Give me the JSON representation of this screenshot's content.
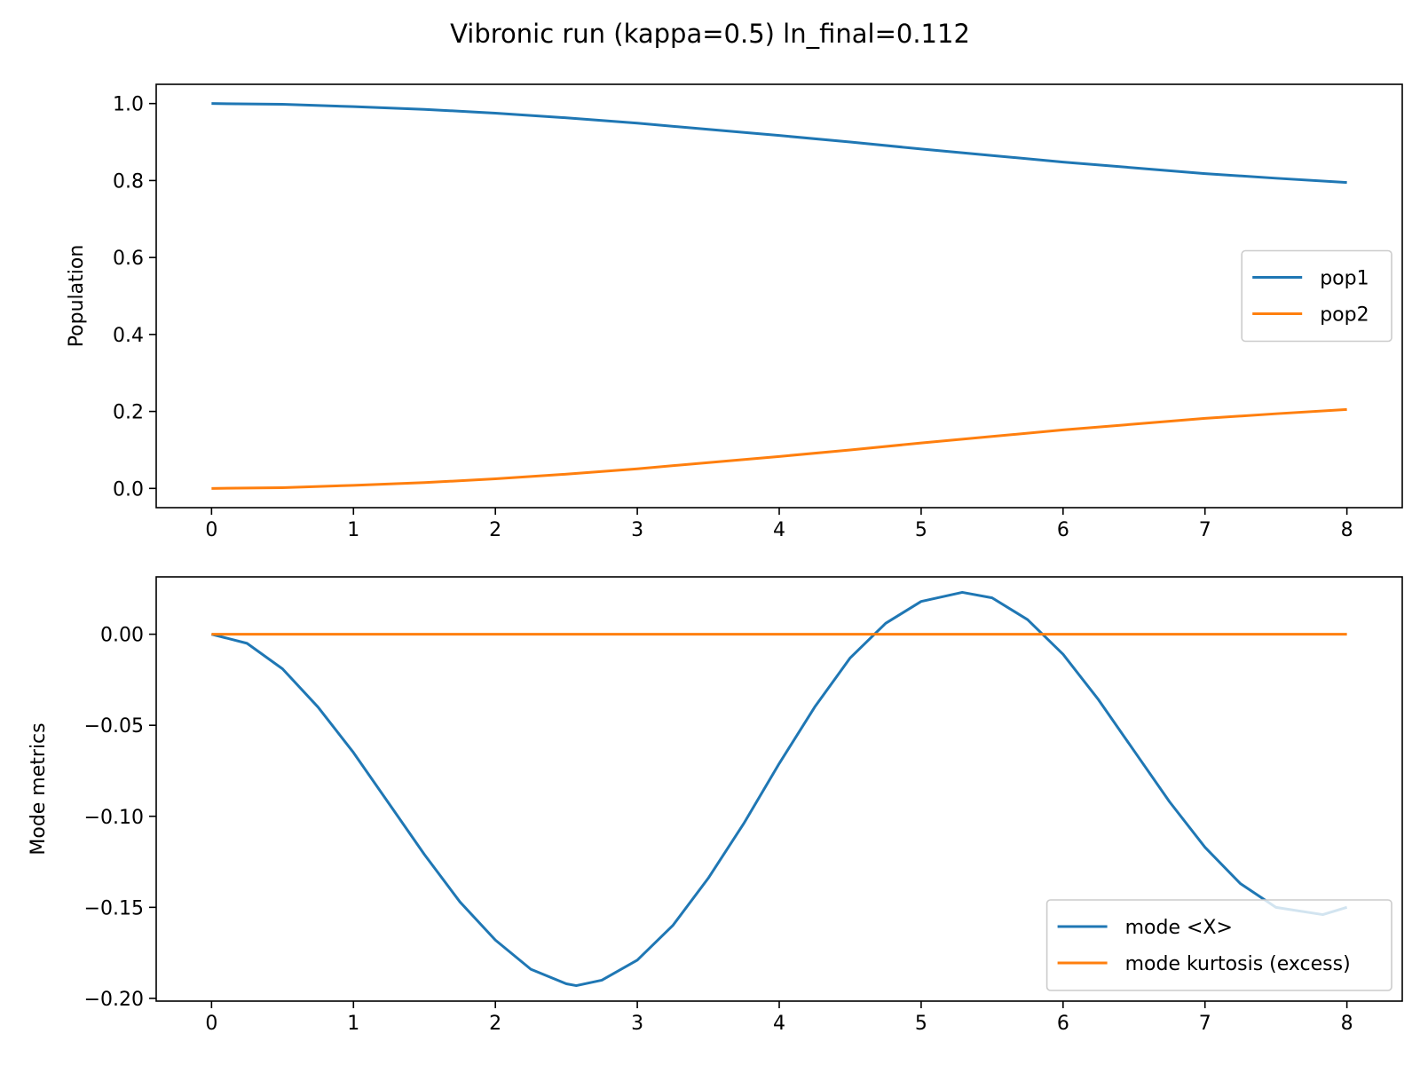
{
  "figure": {
    "suptitle": "Vibronic run (kappa=0.5)  ln_final=0.112"
  },
  "chart_data": [
    {
      "type": "line",
      "title": "",
      "xlabel": "",
      "ylabel": "Population",
      "xlim": [
        -0.39,
        8.39
      ],
      "ylim": [
        -0.05,
        1.05
      ],
      "xticks": [
        0,
        1,
        2,
        3,
        4,
        5,
        6,
        7,
        8
      ],
      "xtick_labels": [
        "0",
        "1",
        "2",
        "3",
        "4",
        "5",
        "6",
        "7",
        "8"
      ],
      "yticks": [
        0.0,
        0.2,
        0.4,
        0.6,
        0.8,
        1.0
      ],
      "ytick_labels": [
        "0.0",
        "0.2",
        "0.4",
        "0.6",
        "0.8",
        "1.0"
      ],
      "grid": false,
      "legend_position": "center-right",
      "x": [
        0,
        0.5,
        1,
        1.5,
        2,
        2.5,
        3,
        3.5,
        4,
        4.5,
        5,
        5.5,
        6,
        6.5,
        7,
        7.5,
        8
      ],
      "series": [
        {
          "name": "pop1",
          "color": "#1f77b4",
          "values": [
            1.0,
            0.998,
            0.992,
            0.985,
            0.975,
            0.963,
            0.949,
            0.933,
            0.917,
            0.9,
            0.882,
            0.865,
            0.848,
            0.833,
            0.818,
            0.806,
            0.795
          ]
        },
        {
          "name": "pop2",
          "color": "#ff7f0e",
          "values": [
            0.0,
            0.002,
            0.008,
            0.015,
            0.025,
            0.037,
            0.051,
            0.067,
            0.083,
            0.1,
            0.118,
            0.135,
            0.152,
            0.167,
            0.182,
            0.194,
            0.205
          ]
        }
      ]
    },
    {
      "type": "line",
      "title": "",
      "xlabel": "",
      "ylabel": "Mode metrics",
      "xlim": [
        -0.39,
        8.39
      ],
      "ylim": [
        -0.2015,
        0.0315
      ],
      "xticks": [
        0,
        1,
        2,
        3,
        4,
        5,
        6,
        7,
        8
      ],
      "xtick_labels": [
        "0",
        "1",
        "2",
        "3",
        "4",
        "5",
        "6",
        "7",
        "8"
      ],
      "yticks": [
        0.0,
        -0.05,
        -0.1,
        -0.15,
        -0.2
      ],
      "ytick_labels": [
        "0.00",
        "−0.05",
        "−0.10",
        "−0.15",
        "−0.20"
      ],
      "grid": false,
      "legend_position": "lower-right",
      "x": [
        0,
        0.25,
        0.5,
        0.75,
        1,
        1.25,
        1.5,
        1.75,
        2,
        2.25,
        2.5,
        2.57,
        2.75,
        3,
        3.25,
        3.5,
        3.75,
        4,
        4.25,
        4.5,
        4.75,
        5,
        5.29,
        5.5,
        5.75,
        6,
        6.25,
        6.5,
        6.75,
        7,
        7.25,
        7.5,
        7.83,
        8
      ],
      "series": [
        {
          "name": "mode <X>",
          "color": "#1f77b4",
          "values": [
            0.0,
            -0.005,
            -0.019,
            -0.04,
            -0.065,
            -0.093,
            -0.121,
            -0.147,
            -0.168,
            -0.184,
            -0.192,
            -0.193,
            -0.19,
            -0.179,
            -0.16,
            -0.134,
            -0.104,
            -0.071,
            -0.04,
            -0.013,
            0.006,
            0.018,
            0.023,
            0.02,
            0.008,
            -0.011,
            -0.036,
            -0.064,
            -0.092,
            -0.117,
            -0.137,
            -0.15,
            -0.154,
            -0.15
          ]
        },
        {
          "name": "mode kurtosis (excess)",
          "color": "#ff7f0e",
          "values": [
            0.0,
            0.0,
            0.0,
            0.0,
            0.0,
            0.0,
            0.0,
            0.0,
            0.0,
            0.0,
            0.0,
            0.0,
            0.0,
            0.0,
            0.0,
            0.0,
            0.0,
            0.0,
            0.0,
            0.0,
            0.0,
            0.0,
            0.0,
            0.0,
            0.0,
            0.0,
            0.0,
            0.0,
            0.0,
            0.0,
            0.0,
            0.0,
            0.0,
            0.0
          ]
        }
      ]
    }
  ]
}
